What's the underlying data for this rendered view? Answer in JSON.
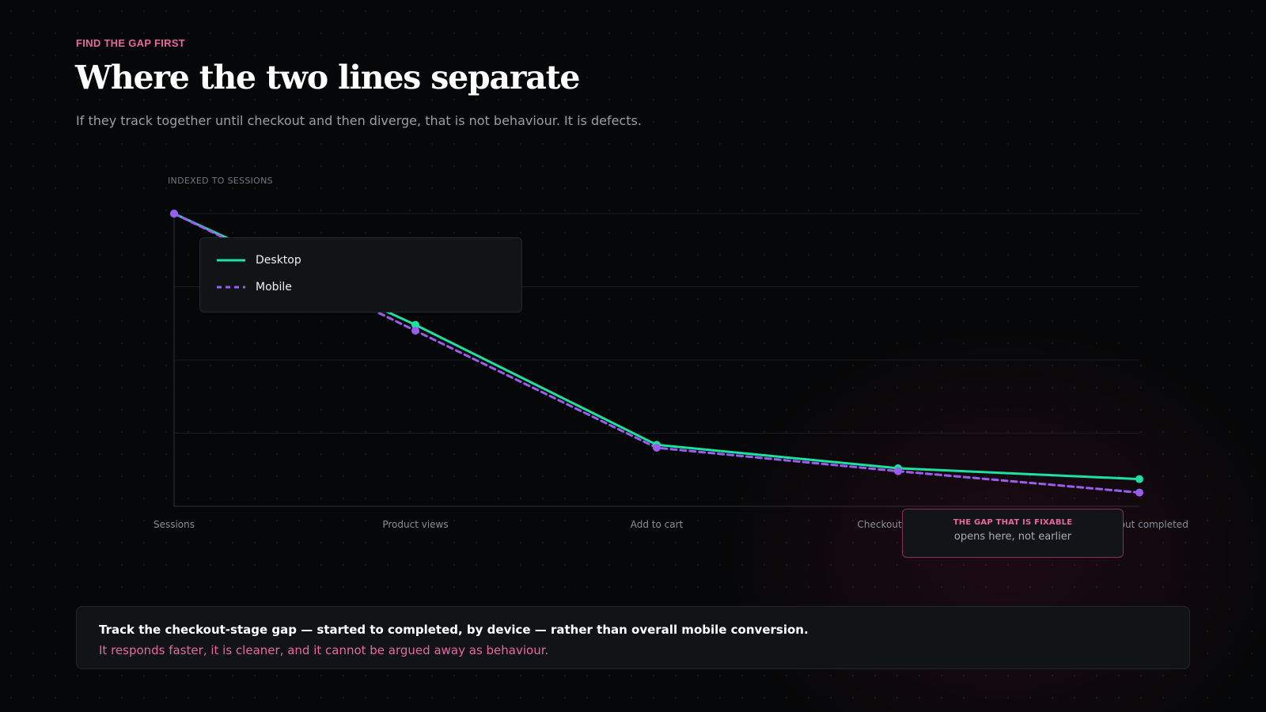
{
  "header": {
    "eyebrow": "FIND THE GAP FIRST",
    "title": "Where the two lines separate",
    "subtitle": "If they track together until checkout and then diverge, that is not behaviour. It is defects."
  },
  "colors": {
    "desktop": "#1ee0a1",
    "mobile": "#9b5cf0",
    "accent": "#e8689e"
  },
  "chart_data": {
    "type": "line",
    "ylabel": "INDEXED TO SESSIONS",
    "ylim": [
      0,
      100
    ],
    "grid": true,
    "legend_position": "top-left",
    "categories": [
      "Sessions",
      "Product views",
      "Add to cart",
      "Checkout started",
      "Checkout completed"
    ],
    "series": [
      {
        "name": "Desktop",
        "style": "solid",
        "values": [
          100,
          62,
          21,
          13,
          9.3
        ]
      },
      {
        "name": "Mobile",
        "style": "dashed",
        "values": [
          100,
          60,
          20,
          12,
          4.7
        ]
      }
    ]
  },
  "callout": {
    "tag": "THE GAP THAT IS FIXABLE",
    "text": "opens here, not earlier"
  },
  "takeaway": {
    "strong": "Track the checkout-stage gap — started to completed, by device — rather than overall mobile conversion.",
    "sub": "It responds faster, it is cleaner, and it cannot be argued away as behaviour."
  }
}
